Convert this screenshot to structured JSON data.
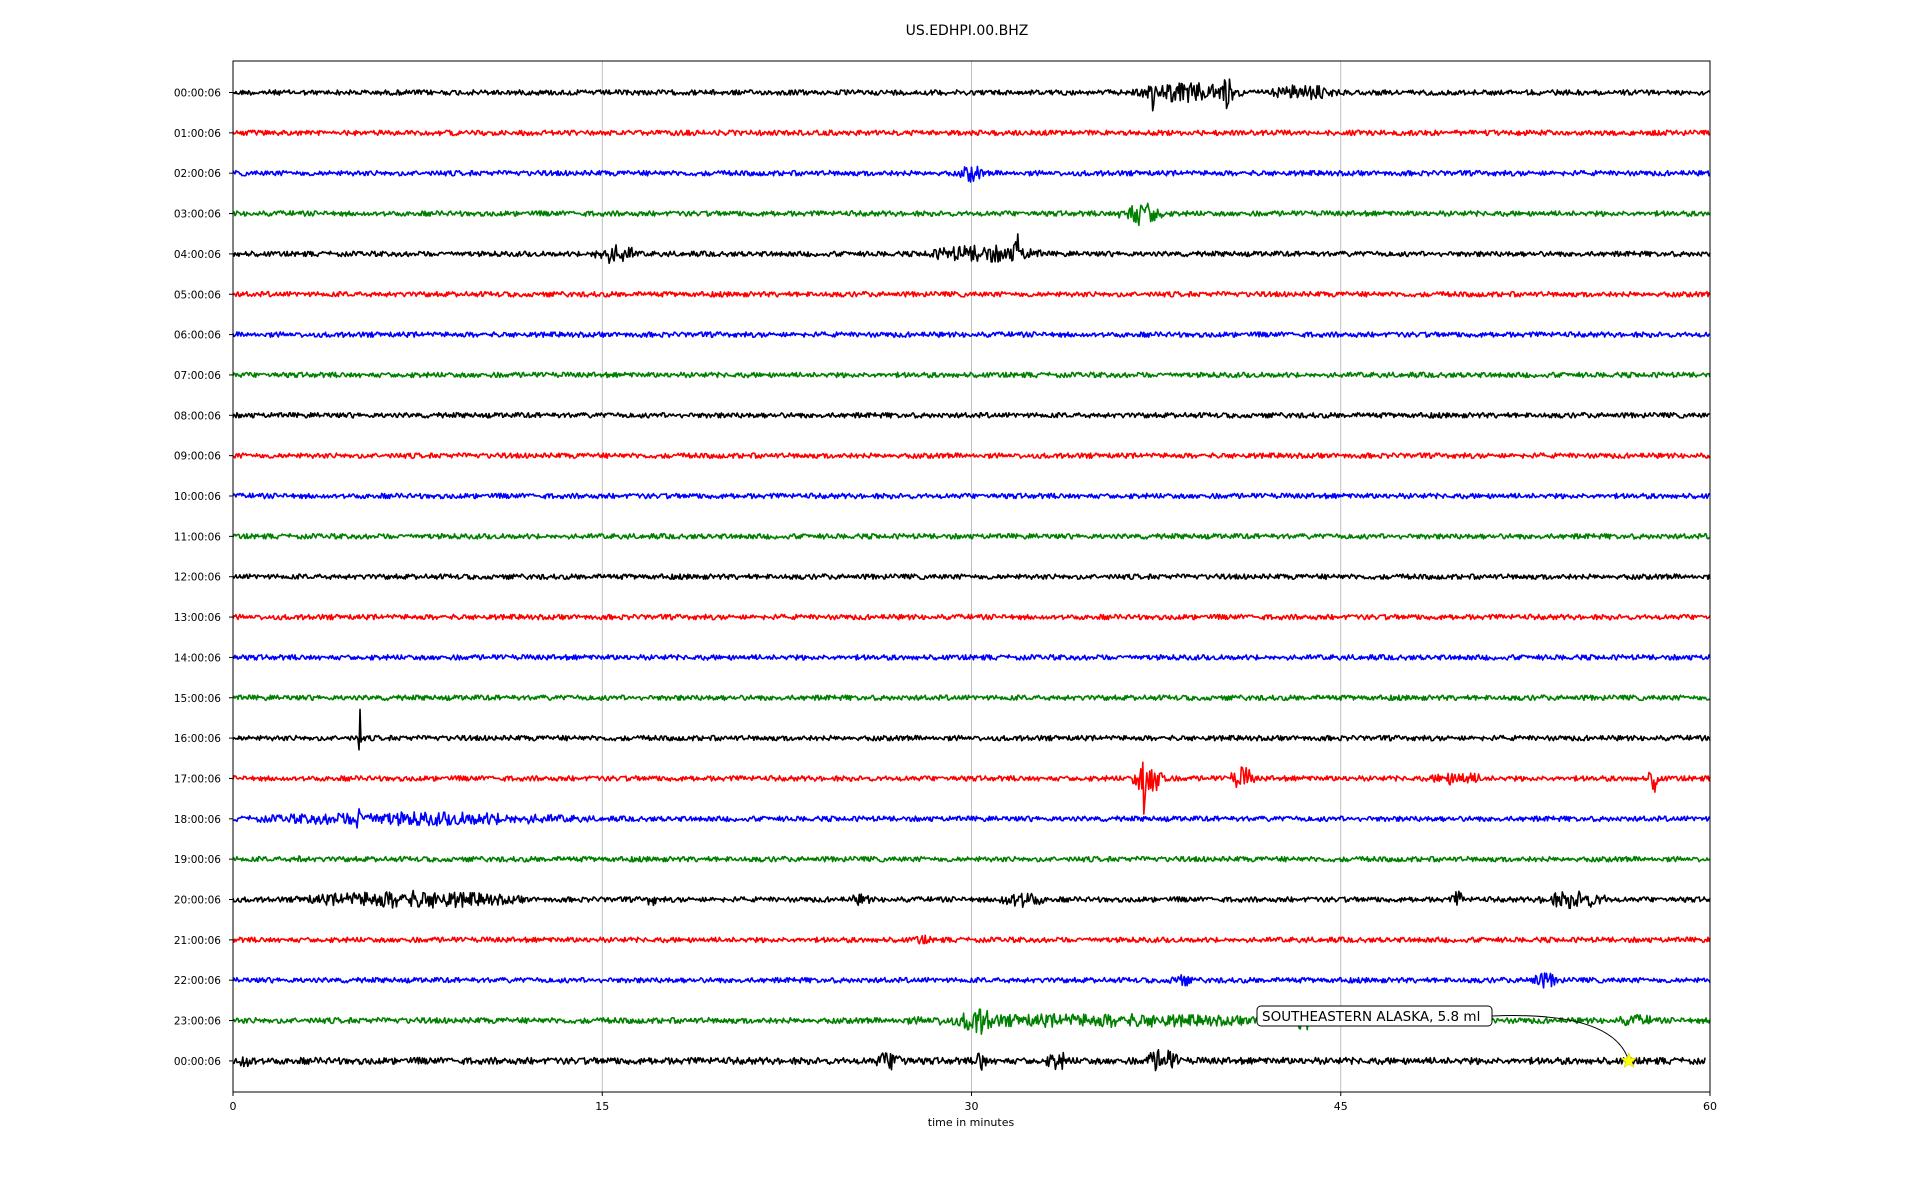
{
  "chart_data": {
    "type": "line",
    "title": "US.EDHPI.00.BHZ",
    "xlabel": "time in minutes",
    "ylabel": "",
    "xlim": [
      0,
      60
    ],
    "x_ticks": [
      "0",
      "15",
      "30",
      "45",
      "60"
    ],
    "grid": "vertical lines at 15, 30, 45",
    "color_cycle": [
      "#000000",
      "#ff0000",
      "#0000ff",
      "#008000"
    ],
    "row_labels": [
      "00:00:06",
      "01:00:06",
      "02:00:06",
      "03:00:06",
      "04:00:06",
      "05:00:06",
      "06:00:06",
      "07:00:06",
      "08:00:06",
      "09:00:06",
      "10:00:06",
      "11:00:06",
      "12:00:06",
      "13:00:06",
      "14:00:06",
      "15:00:06",
      "16:00:06",
      "17:00:06",
      "18:00:06",
      "19:00:06",
      "20:00:06",
      "21:00:06",
      "22:00:06",
      "23:00:06",
      "00:00:06"
    ],
    "noise_level": [
      1,
      1,
      1,
      1,
      1,
      1,
      1,
      1,
      1,
      1,
      1,
      1,
      1,
      1,
      1,
      1,
      1,
      1,
      1,
      1,
      1,
      1,
      1,
      1.1,
      1.3
    ],
    "row_end_minute": [
      60,
      60,
      60,
      60,
      60,
      60,
      60,
      60,
      60,
      60,
      60,
      60,
      60,
      60,
      60,
      60,
      60,
      60,
      60,
      60,
      60,
      60,
      60,
      60,
      59.8
    ],
    "bursts": [
      {
        "row": 0,
        "t0": 36.5,
        "t1": 41,
        "amp": 10
      },
      {
        "row": 0,
        "t0": 37.3,
        "t1": 37.5,
        "amp": 22
      },
      {
        "row": 0,
        "t0": 40.2,
        "t1": 40.6,
        "amp": 22
      },
      {
        "row": 0,
        "t0": 42,
        "t1": 45,
        "amp": 8
      },
      {
        "row": 2,
        "t0": 29.5,
        "t1": 30.5,
        "amp": 9
      },
      {
        "row": 3,
        "t0": 36,
        "t1": 37.8,
        "amp": 13
      },
      {
        "row": 4,
        "t0": 14.5,
        "t1": 16.5,
        "amp": 10
      },
      {
        "row": 4,
        "t0": 28,
        "t1": 33,
        "amp": 9
      },
      {
        "row": 4,
        "t0": 31.7,
        "t1": 32,
        "amp": 26
      },
      {
        "row": 16,
        "t0": 5.1,
        "t1": 5.2,
        "amp": 36
      },
      {
        "row": 17,
        "t0": 36.5,
        "t1": 38,
        "amp": 16
      },
      {
        "row": 17,
        "t0": 36.9,
        "t1": 37.1,
        "amp": 40
      },
      {
        "row": 17,
        "t0": 40.5,
        "t1": 41.5,
        "amp": 12
      },
      {
        "row": 17,
        "t0": 48.5,
        "t1": 51,
        "amp": 7
      },
      {
        "row": 17,
        "t0": 57.5,
        "t1": 58,
        "amp": 14
      },
      {
        "row": 18,
        "t0": 0,
        "t1": 15,
        "amp": 7
      },
      {
        "row": 18,
        "t0": 5,
        "t1": 5.2,
        "amp": 20
      },
      {
        "row": 19,
        "t0": 2.6,
        "t1": 2.9,
        "amp": 6
      },
      {
        "row": 20,
        "t0": 2.5,
        "t1": 12,
        "amp": 9
      },
      {
        "row": 20,
        "t0": 16.8,
        "t1": 17.2,
        "amp": 8
      },
      {
        "row": 20,
        "t0": 25,
        "t1": 26,
        "amp": 6
      },
      {
        "row": 20,
        "t0": 31,
        "t1": 33,
        "amp": 9
      },
      {
        "row": 20,
        "t0": 49.5,
        "t1": 50,
        "amp": 9
      },
      {
        "row": 20,
        "t0": 53,
        "t1": 56,
        "amp": 9
      },
      {
        "row": 21,
        "t0": 27.5,
        "t1": 28.5,
        "amp": 5
      },
      {
        "row": 22,
        "t0": 38,
        "t1": 39,
        "amp": 7
      },
      {
        "row": 22,
        "t0": 52.5,
        "t1": 54,
        "amp": 8
      },
      {
        "row": 23,
        "t0": 26,
        "t1": 44,
        "amp": 7
      },
      {
        "row": 23,
        "t0": 29.5,
        "t1": 31,
        "amp": 14
      },
      {
        "row": 23,
        "t0": 43,
        "t1": 44,
        "amp": 10
      },
      {
        "row": 23,
        "t0": 56,
        "t1": 58,
        "amp": 6
      },
      {
        "row": 24,
        "t0": 0,
        "t1": 1,
        "amp": 8
      },
      {
        "row": 24,
        "t0": 26,
        "t1": 27.5,
        "amp": 10
      },
      {
        "row": 24,
        "t0": 30.2,
        "t1": 30.6,
        "amp": 14
      },
      {
        "row": 24,
        "t0": 33,
        "t1": 34,
        "amp": 10
      },
      {
        "row": 24,
        "t0": 37,
        "t1": 38.5,
        "amp": 12
      }
    ],
    "annotations": [
      {
        "text": "SOUTHEASTERN ALASKA, 5.8 ml",
        "row": 24,
        "x": 56.7,
        "marker": "yellow-star",
        "marker_color": "#ffff00"
      }
    ]
  }
}
